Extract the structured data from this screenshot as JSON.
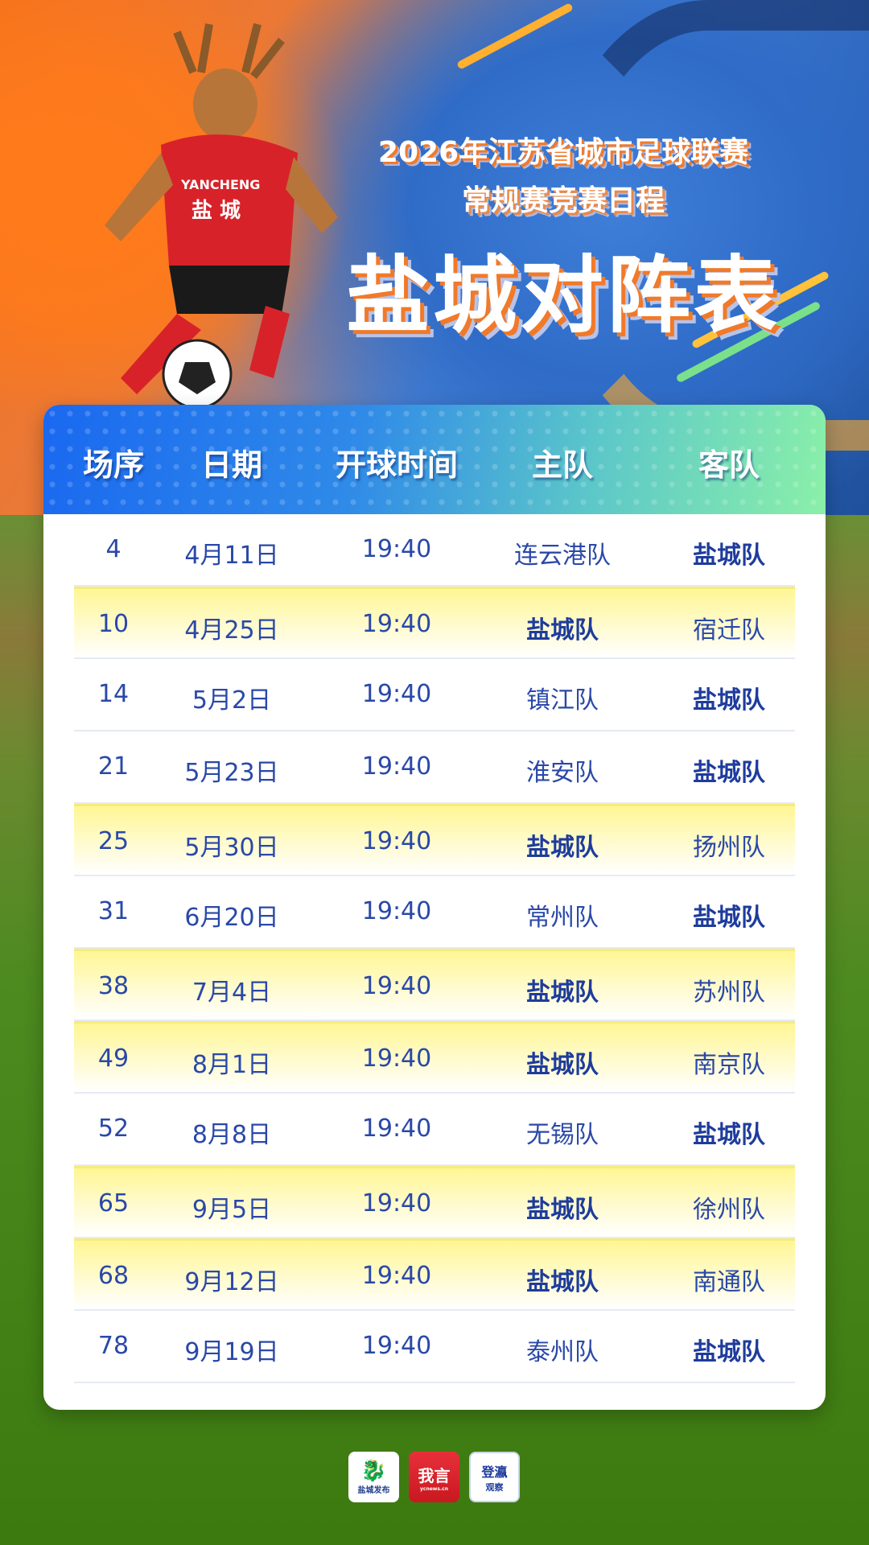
{
  "header": {
    "line1": "2026年江苏省城市足球联赛",
    "line2": "常规赛竞赛日程",
    "title": "盐城对阵表",
    "jersey_text_en": "YANCHENG",
    "jersey_text_cn": "盐 城"
  },
  "table": {
    "columns": [
      "场序",
      "日期",
      "开球时间",
      "主队",
      "客队"
    ],
    "home_team": "盐城队",
    "rows": [
      {
        "no": "4",
        "date": "4月11日",
        "time": "19:40",
        "home": "连云港队",
        "away": "盐城队"
      },
      {
        "no": "10",
        "date": "4月25日",
        "time": "19:40",
        "home": "盐城队",
        "away": "宿迁队"
      },
      {
        "no": "14",
        "date": "5月2日",
        "time": "19:40",
        "home": "镇江队",
        "away": "盐城队"
      },
      {
        "no": "21",
        "date": "5月23日",
        "time": "19:40",
        "home": "淮安队",
        "away": "盐城队"
      },
      {
        "no": "25",
        "date": "5月30日",
        "time": "19:40",
        "home": "盐城队",
        "away": "扬州队"
      },
      {
        "no": "31",
        "date": "6月20日",
        "time": "19:40",
        "home": "常州队",
        "away": "盐城队"
      },
      {
        "no": "38",
        "date": "7月4日",
        "time": "19:40",
        "home": "盐城队",
        "away": "苏州队"
      },
      {
        "no": "49",
        "date": "8月1日",
        "time": "19:40",
        "home": "盐城队",
        "away": "南京队"
      },
      {
        "no": "52",
        "date": "8月8日",
        "time": "19:40",
        "home": "无锡队",
        "away": "盐城队"
      },
      {
        "no": "65",
        "date": "9月5日",
        "time": "19:40",
        "home": "盐城队",
        "away": "徐州队"
      },
      {
        "no": "68",
        "date": "9月12日",
        "time": "19:40",
        "home": "盐城队",
        "away": "南通队"
      },
      {
        "no": "78",
        "date": "9月19日",
        "time": "19:40",
        "home": "泰州队",
        "away": "盐城队"
      }
    ]
  },
  "logos": [
    {
      "name": "盐城发布"
    },
    {
      "name": "我言",
      "sub": "ycnews.cn"
    },
    {
      "name": "登瀛",
      "sub": "观察"
    }
  ],
  "colors": {
    "header_blue": "#1a68f0",
    "header_green": "#8af0a8",
    "text_blue": "#2a48a8",
    "highlight_yellow": "#fff694"
  }
}
